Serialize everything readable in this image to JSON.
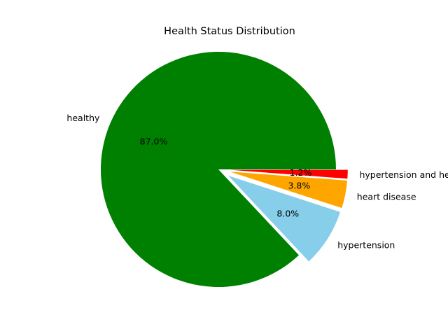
{
  "chart_data": {
    "type": "pie",
    "title": "Health Status Distribution",
    "start_angle_deg": 0,
    "direction": "counterclockwise",
    "slices": [
      {
        "label": "healthy",
        "value": 87.0,
        "pct_text": "87.0%",
        "color": "#008000",
        "explode": 0.0
      },
      {
        "label": "hypertension",
        "value": 8.0,
        "pct_text": "8.0%",
        "color": "#87CEEB",
        "explode": 0.1
      },
      {
        "label": "heart disease",
        "value": 3.8,
        "pct_text": "3.8%",
        "color": "#FFA500",
        "explode": 0.1
      },
      {
        "label": "hypertension and heart disease",
        "value": 1.2,
        "pct_text": "1.2%",
        "color": "#FF0000",
        "explode": 0.1
      }
    ]
  }
}
